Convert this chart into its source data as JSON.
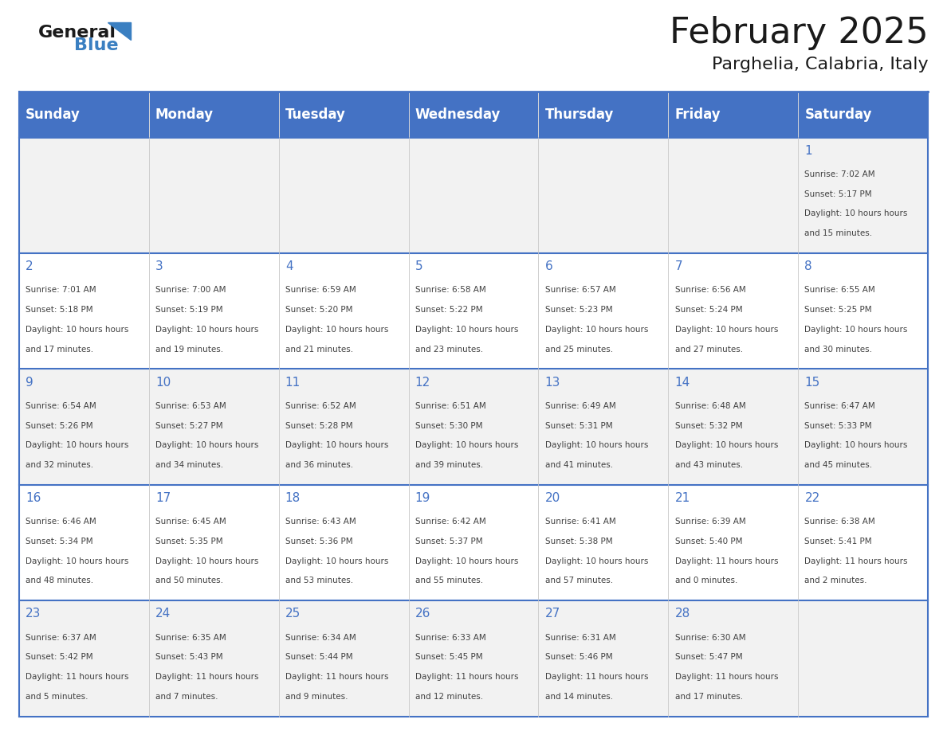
{
  "title": "February 2025",
  "subtitle": "Parghelia, Calabria, Italy",
  "days_of_week": [
    "Sunday",
    "Monday",
    "Tuesday",
    "Wednesday",
    "Thursday",
    "Friday",
    "Saturday"
  ],
  "header_bg": "#4472C4",
  "header_text": "#FFFFFF",
  "cell_bg_odd": "#F2F2F2",
  "cell_bg_even": "#FFFFFF",
  "border_color": "#4472C4",
  "day_number_color": "#4472C4",
  "info_text_color": "#404040",
  "title_color": "#1a1a1a",
  "subtitle_color": "#1a1a1a",
  "calendar": [
    [
      null,
      null,
      null,
      null,
      null,
      null,
      {
        "day": 1,
        "sunrise": "7:02 AM",
        "sunset": "5:17 PM",
        "daylight": "10 hours and 15 minutes."
      }
    ],
    [
      {
        "day": 2,
        "sunrise": "7:01 AM",
        "sunset": "5:18 PM",
        "daylight": "10 hours and 17 minutes."
      },
      {
        "day": 3,
        "sunrise": "7:00 AM",
        "sunset": "5:19 PM",
        "daylight": "10 hours and 19 minutes."
      },
      {
        "day": 4,
        "sunrise": "6:59 AM",
        "sunset": "5:20 PM",
        "daylight": "10 hours and 21 minutes."
      },
      {
        "day": 5,
        "sunrise": "6:58 AM",
        "sunset": "5:22 PM",
        "daylight": "10 hours and 23 minutes."
      },
      {
        "day": 6,
        "sunrise": "6:57 AM",
        "sunset": "5:23 PM",
        "daylight": "10 hours and 25 minutes."
      },
      {
        "day": 7,
        "sunrise": "6:56 AM",
        "sunset": "5:24 PM",
        "daylight": "10 hours and 27 minutes."
      },
      {
        "day": 8,
        "sunrise": "6:55 AM",
        "sunset": "5:25 PM",
        "daylight": "10 hours and 30 minutes."
      }
    ],
    [
      {
        "day": 9,
        "sunrise": "6:54 AM",
        "sunset": "5:26 PM",
        "daylight": "10 hours and 32 minutes."
      },
      {
        "day": 10,
        "sunrise": "6:53 AM",
        "sunset": "5:27 PM",
        "daylight": "10 hours and 34 minutes."
      },
      {
        "day": 11,
        "sunrise": "6:52 AM",
        "sunset": "5:28 PM",
        "daylight": "10 hours and 36 minutes."
      },
      {
        "day": 12,
        "sunrise": "6:51 AM",
        "sunset": "5:30 PM",
        "daylight": "10 hours and 39 minutes."
      },
      {
        "day": 13,
        "sunrise": "6:49 AM",
        "sunset": "5:31 PM",
        "daylight": "10 hours and 41 minutes."
      },
      {
        "day": 14,
        "sunrise": "6:48 AM",
        "sunset": "5:32 PM",
        "daylight": "10 hours and 43 minutes."
      },
      {
        "day": 15,
        "sunrise": "6:47 AM",
        "sunset": "5:33 PM",
        "daylight": "10 hours and 45 minutes."
      }
    ],
    [
      {
        "day": 16,
        "sunrise": "6:46 AM",
        "sunset": "5:34 PM",
        "daylight": "10 hours and 48 minutes."
      },
      {
        "day": 17,
        "sunrise": "6:45 AM",
        "sunset": "5:35 PM",
        "daylight": "10 hours and 50 minutes."
      },
      {
        "day": 18,
        "sunrise": "6:43 AM",
        "sunset": "5:36 PM",
        "daylight": "10 hours and 53 minutes."
      },
      {
        "day": 19,
        "sunrise": "6:42 AM",
        "sunset": "5:37 PM",
        "daylight": "10 hours and 55 minutes."
      },
      {
        "day": 20,
        "sunrise": "6:41 AM",
        "sunset": "5:38 PM",
        "daylight": "10 hours and 57 minutes."
      },
      {
        "day": 21,
        "sunrise": "6:39 AM",
        "sunset": "5:40 PM",
        "daylight": "11 hours and 0 minutes."
      },
      {
        "day": 22,
        "sunrise": "6:38 AM",
        "sunset": "5:41 PM",
        "daylight": "11 hours and 2 minutes."
      }
    ],
    [
      {
        "day": 23,
        "sunrise": "6:37 AM",
        "sunset": "5:42 PM",
        "daylight": "11 hours and 5 minutes."
      },
      {
        "day": 24,
        "sunrise": "6:35 AM",
        "sunset": "5:43 PM",
        "daylight": "11 hours and 7 minutes."
      },
      {
        "day": 25,
        "sunrise": "6:34 AM",
        "sunset": "5:44 PM",
        "daylight": "11 hours and 9 minutes."
      },
      {
        "day": 26,
        "sunrise": "6:33 AM",
        "sunset": "5:45 PM",
        "daylight": "11 hours and 12 minutes."
      },
      {
        "day": 27,
        "sunrise": "6:31 AM",
        "sunset": "5:46 PM",
        "daylight": "11 hours and 14 minutes."
      },
      {
        "day": 28,
        "sunrise": "6:30 AM",
        "sunset": "5:47 PM",
        "daylight": "11 hours and 17 minutes."
      },
      null
    ]
  ]
}
